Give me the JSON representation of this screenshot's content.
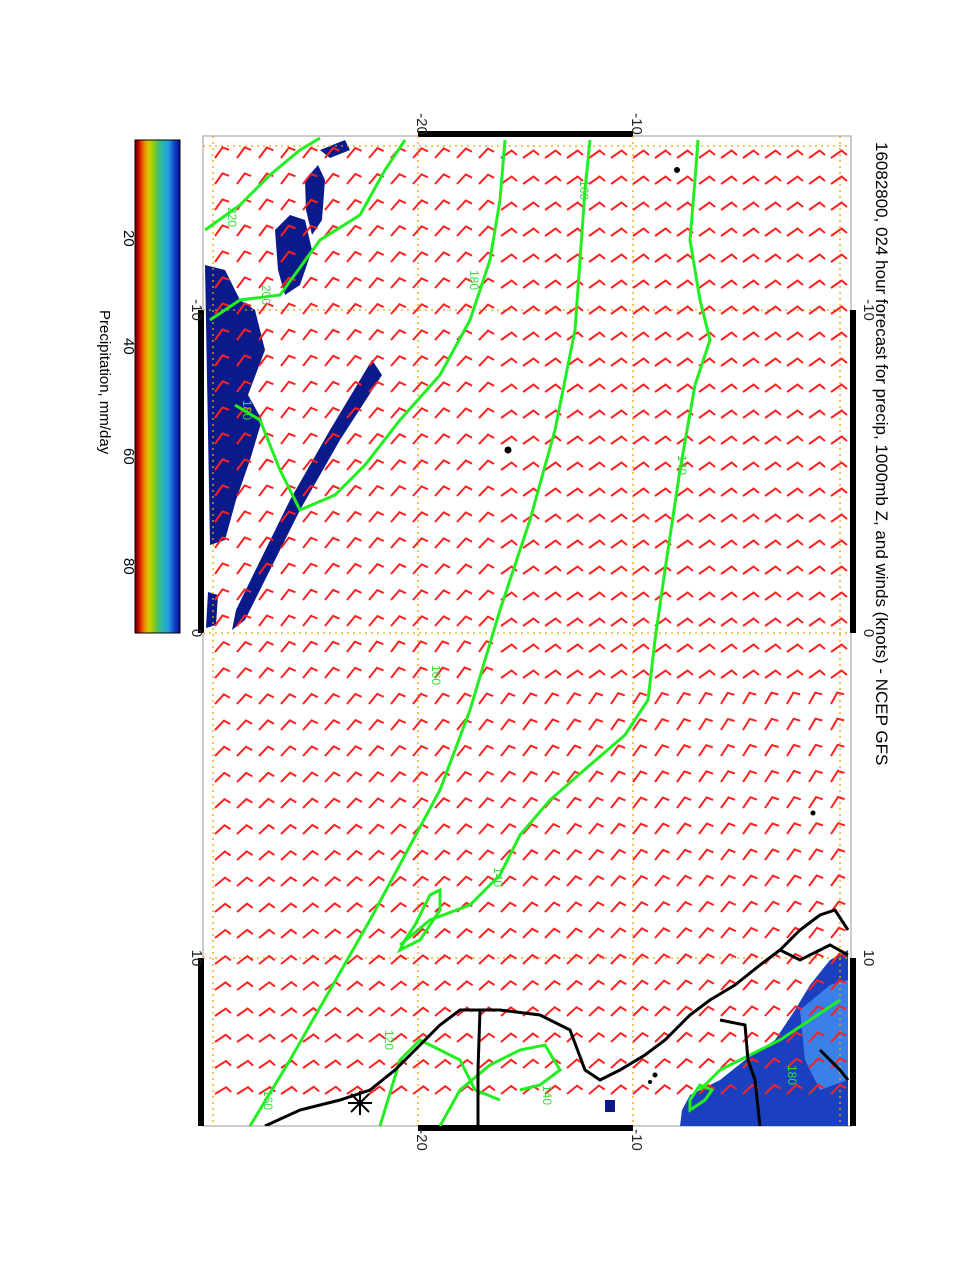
{
  "title": "16082800, 024 hour forecast for precip, 1000mb Z, and winds (knots) - NCEP GFS",
  "axes": {
    "top_ticks": [
      "-20",
      "-10"
    ],
    "bottom_ticks": [
      "-20",
      "-10"
    ],
    "left_ticks": [
      "-10",
      "0",
      "10"
    ],
    "right_ticks": [
      "-10",
      "0",
      "10"
    ]
  },
  "colorbar": {
    "label": "Precipitation, mm/day",
    "ticks": [
      "20",
      "40",
      "60",
      "80"
    ],
    "colors": [
      "#5a0000",
      "#b40000",
      "#e84000",
      "#e89000",
      "#d8c800",
      "#a8d000",
      "#50c060",
      "#20b8b8",
      "#2898e0",
      "#1040c8",
      "#0a108a"
    ]
  },
  "contour_labels": [
    "220",
    "200",
    "180",
    "180",
    "160",
    "160",
    "140",
    "140",
    "140",
    "120",
    "160",
    "180"
  ],
  "colors": {
    "contour": "#22ee22",
    "barb": "#ff2020",
    "grid": "#e8a800",
    "coast": "#000000",
    "precip_dark": "#0a1a8a",
    "precip_mid": "#1a50d0"
  }
}
